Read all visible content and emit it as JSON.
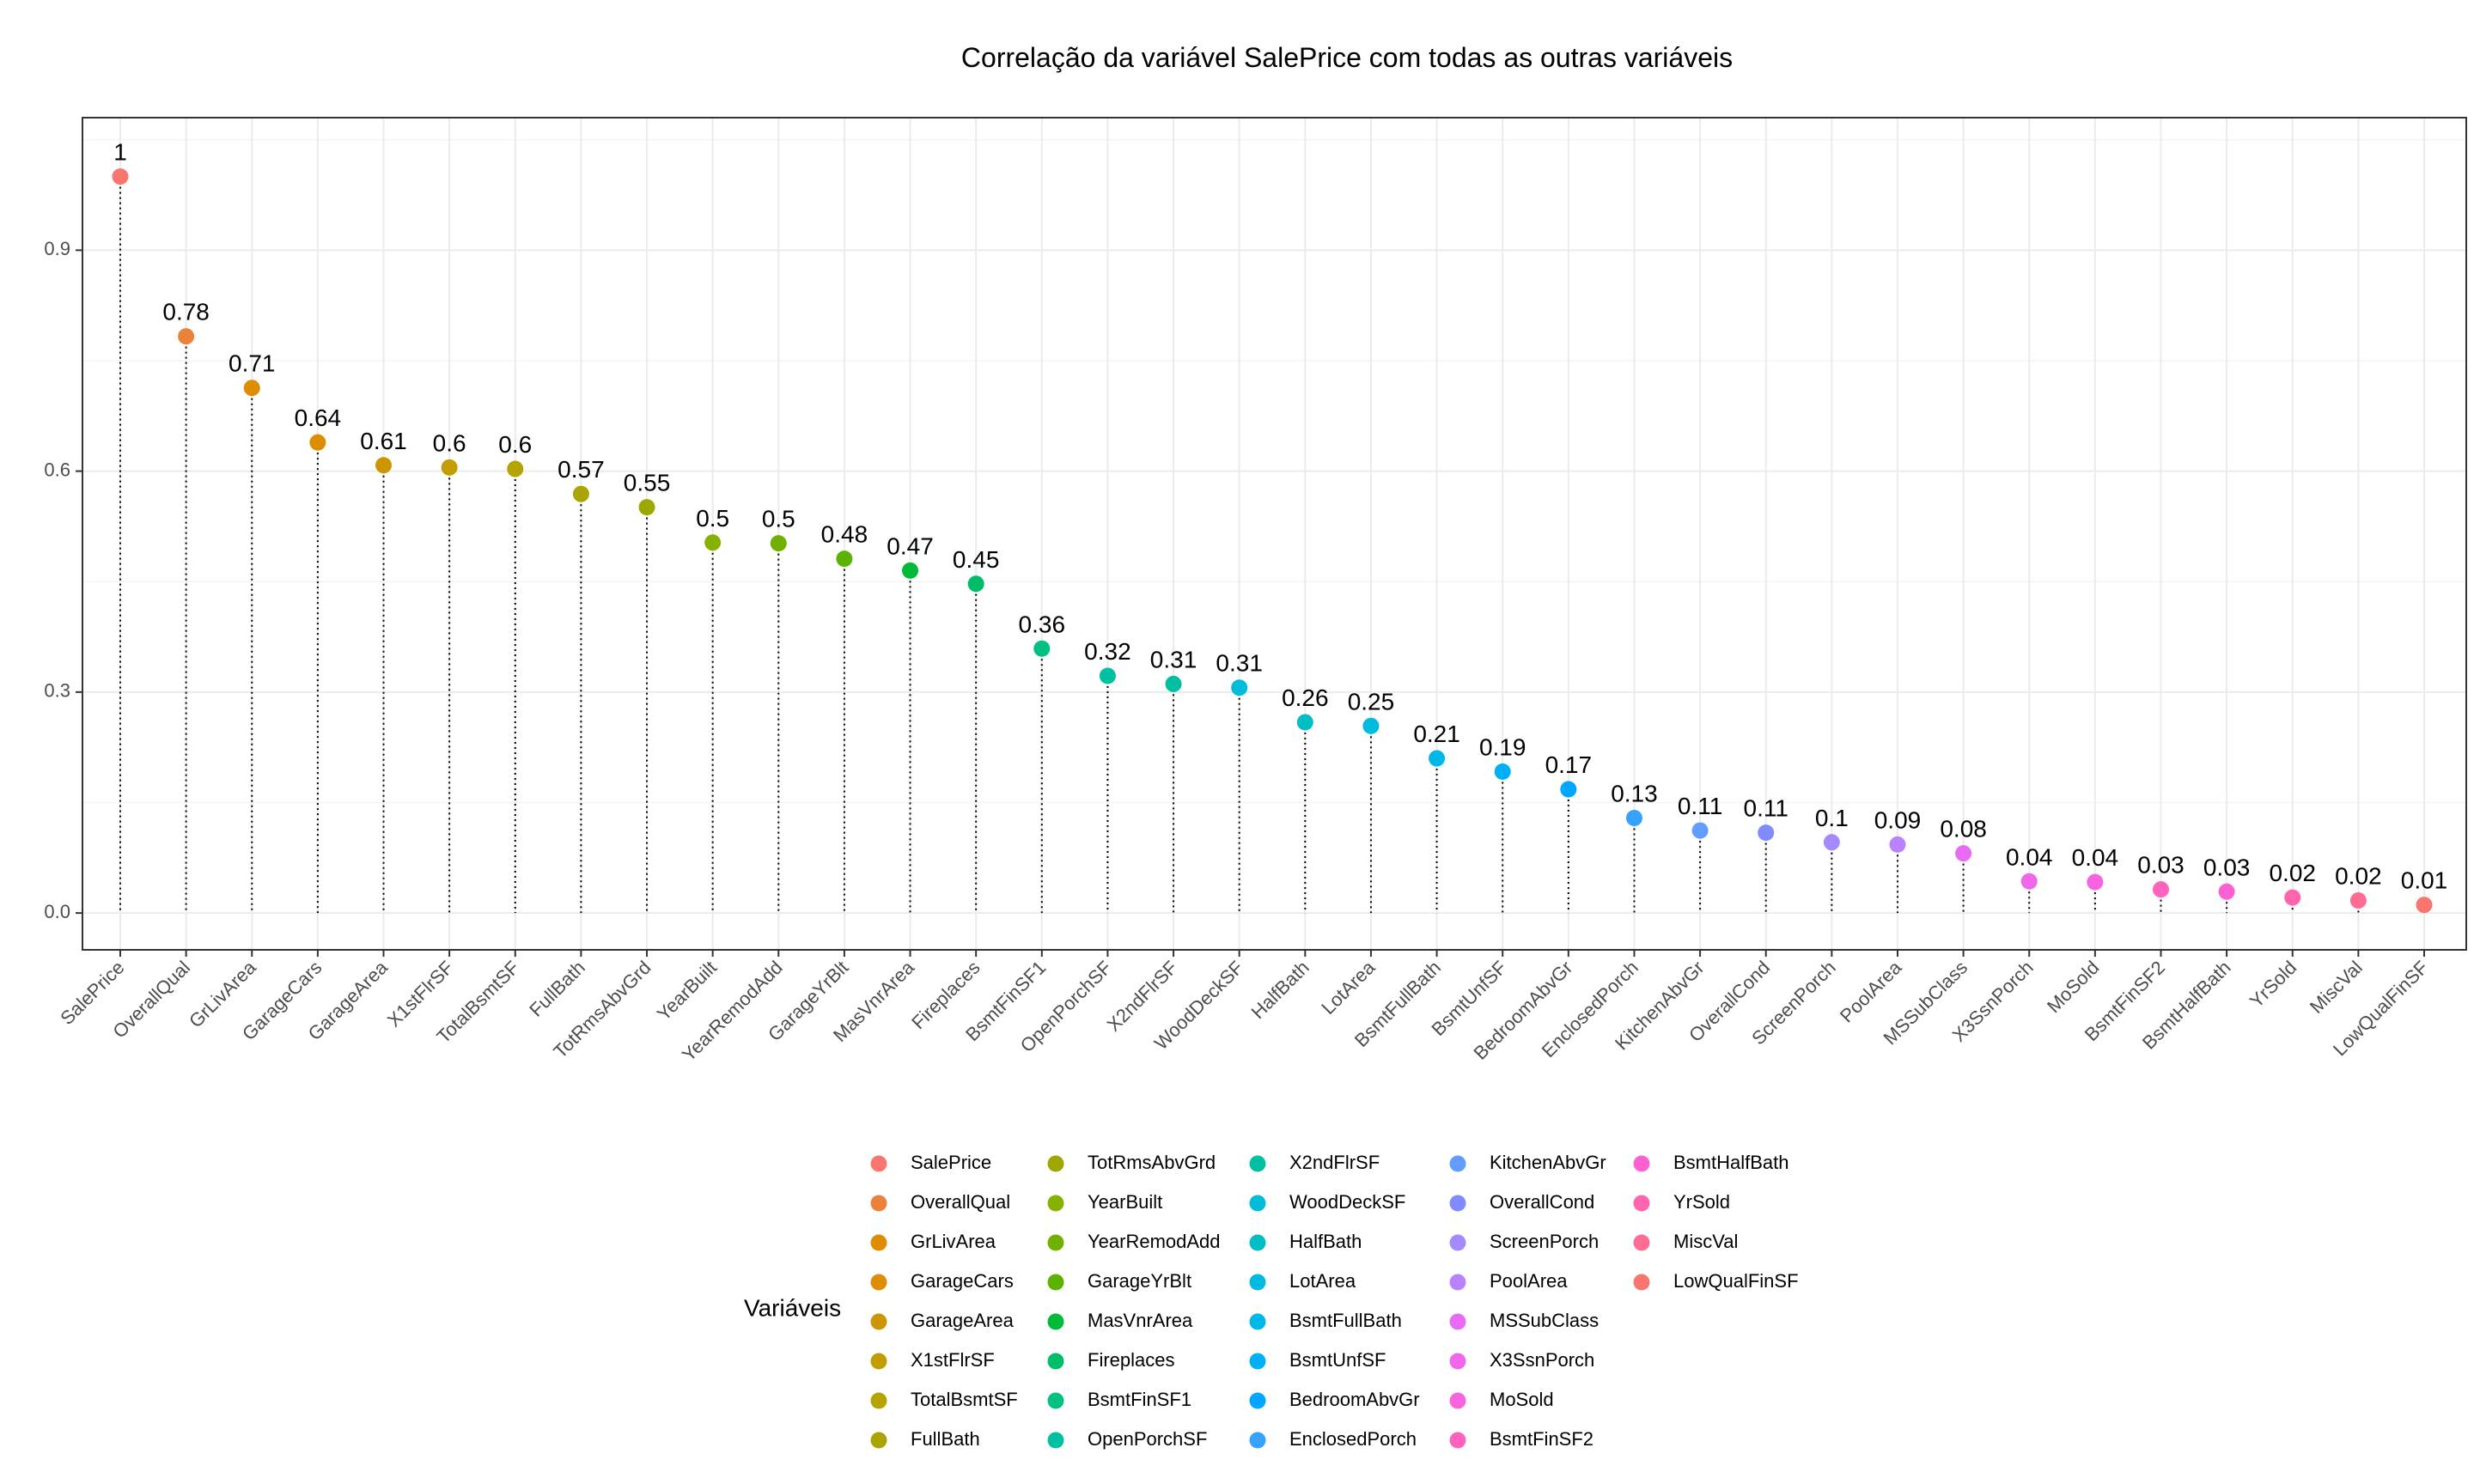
{
  "chart_data": {
    "type": "scatter",
    "title": "Correlação da variável SalePrice com todas as outras variáveis",
    "xlabel": "",
    "ylabel": "",
    "ylim": [
      -0.05,
      1.08
    ],
    "yticks": [
      0.0,
      0.3,
      0.6,
      0.9
    ],
    "ytick_labels": [
      "0.0",
      "0.3",
      "0.6",
      "0.9"
    ],
    "grid": true,
    "legend_position": "bottom",
    "legend_title": "Variáveis",
    "categories": [
      "SalePrice",
      "OverallQual",
      "GrLivArea",
      "GarageCars",
      "GarageArea",
      "X1stFlrSF",
      "TotalBsmtSF",
      "FullBath",
      "TotRmsAbvGrd",
      "YearBuilt",
      "YearRemodAdd",
      "GarageYrBlt",
      "MasVnrArea",
      "Fireplaces",
      "BsmtFinSF1",
      "OpenPorchSF",
      "X2ndFlrSF",
      "WoodDeckSF",
      "HalfBath",
      "LotArea",
      "BsmtFullBath",
      "BsmtUnfSF",
      "BedroomAbvGr",
      "EnclosedPorch",
      "KitchenAbvGr",
      "OverallCond",
      "ScreenPorch",
      "PoolArea",
      "MSSubClass",
      "X3SsnPorch",
      "MoSold",
      "BsmtFinSF2",
      "BsmtHalfBath",
      "YrSold",
      "MiscVal",
      "LowQualFinSF"
    ],
    "values": [
      1.0,
      0.783,
      0.713,
      0.639,
      0.608,
      0.605,
      0.603,
      0.569,
      0.551,
      0.503,
      0.502,
      0.481,
      0.465,
      0.447,
      0.359,
      0.322,
      0.311,
      0.306,
      0.259,
      0.254,
      0.21,
      0.192,
      0.168,
      0.129,
      0.112,
      0.109,
      0.096,
      0.093,
      0.081,
      0.043,
      0.042,
      0.032,
      0.029,
      0.021,
      0.017,
      0.011
    ],
    "labels": [
      "1",
      "0.78",
      "0.71",
      "0.64",
      "0.61",
      "0.6",
      "0.6",
      "0.57",
      "0.55",
      "0.5",
      "0.5",
      "0.48",
      "0.47",
      "0.45",
      "0.36",
      "0.32",
      "0.31",
      "0.31",
      "0.26",
      "0.25",
      "0.21",
      "0.19",
      "0.17",
      "0.13",
      "0.11",
      "0.11",
      "0.1",
      "0.09",
      "0.08",
      "0.04",
      "0.04",
      "0.03",
      "0.03",
      "0.02",
      "0.02",
      "0.01"
    ],
    "colors": [
      "#F8766D",
      "#EC8239",
      "#DE8C00",
      "#DC8D00",
      "#CD9600",
      "#C29D00",
      "#B5A300",
      "#A8A400",
      "#9CA700",
      "#87B100",
      "#6FB000",
      "#5BB300",
      "#00BA38",
      "#00BE67",
      "#00C084",
      "#00C19F",
      "#00BFA0",
      "#00BCD8",
      "#00BFC4",
      "#00BAE0",
      "#00B8E7",
      "#00B0F6",
      "#00A6FF",
      "#35A2FF",
      "#619CFF",
      "#7F8BFF",
      "#A58AFF",
      "#B983FF",
      "#E76BF3",
      "#EF67EB",
      "#F863DF",
      "#FF62BC",
      "#FD61D1",
      "#FF65AE",
      "#FF6C91",
      "#F8766D"
    ]
  }
}
